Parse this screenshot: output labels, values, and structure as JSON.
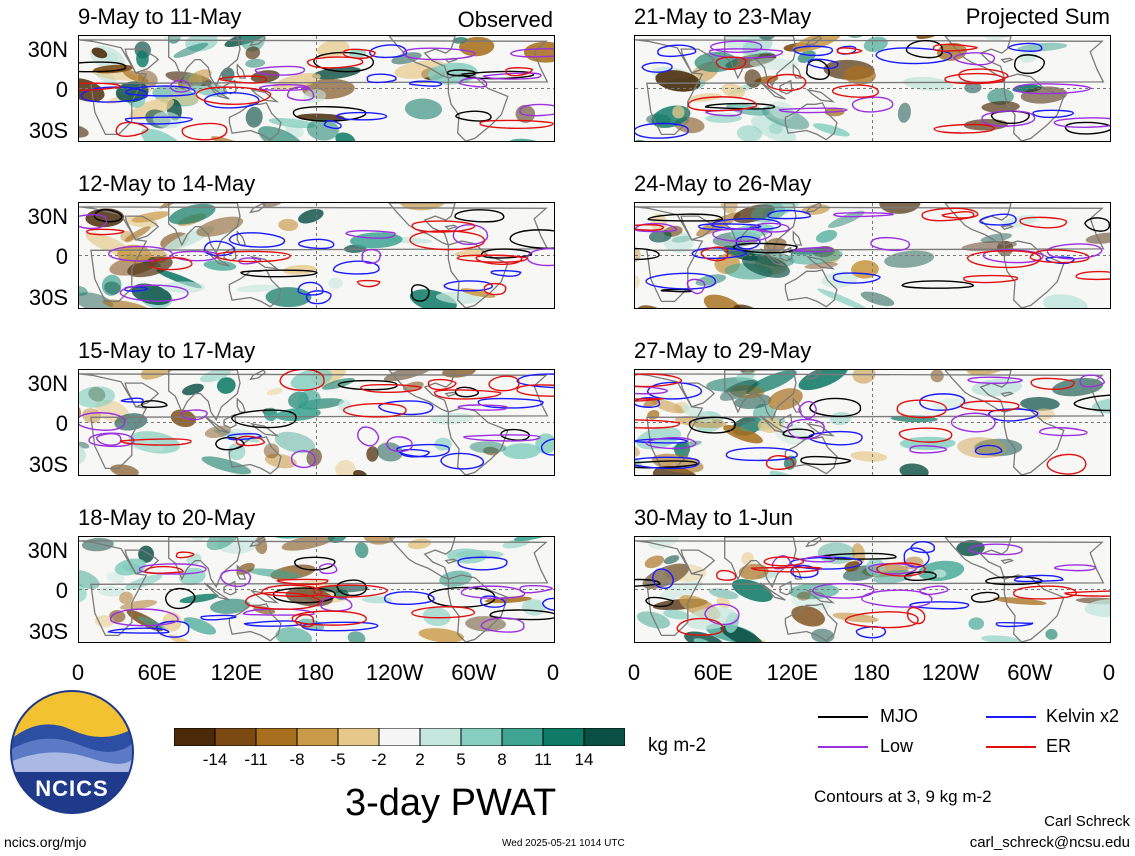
{
  "figure": {
    "title": "3-day PWAT",
    "observed_label": "Observed",
    "projected_label": "Projected Sum",
    "website": "ncics.org/mjo",
    "timestamp": "Wed 2025-05-21 1014 UTC",
    "author": "Carl Schreck",
    "email": "carl_schreck@ncsu.edu",
    "contour_note": "Contours at 3, 9 kg m-2",
    "units": "kg m-2",
    "logo_text": "NCICS"
  },
  "chart_data": {
    "type": "heatmap",
    "variable": "3-day PWAT anomaly",
    "panels": [
      {
        "label": "9-May to 11-May",
        "group": "Observed"
      },
      {
        "label": "12-May to 14-May",
        "group": "Observed"
      },
      {
        "label": "15-May to 17-May",
        "group": "Observed"
      },
      {
        "label": "18-May to 20-May",
        "group": "Observed"
      },
      {
        "label": "21-May to 23-May",
        "group": "Projected Sum"
      },
      {
        "label": "24-May to 26-May",
        "group": "Projected Sum"
      },
      {
        "label": "27-May to 29-May",
        "group": "Projected Sum"
      },
      {
        "label": "30-May to 1-Jun",
        "group": "Projected Sum"
      }
    ],
    "y_ticks": [
      "30N",
      "0",
      "30S"
    ],
    "x_ticks": [
      "0",
      "60E",
      "120E",
      "180",
      "120W",
      "60W",
      "0"
    ],
    "colorbar": {
      "labels": [
        "-14",
        "-11",
        "-8",
        "-5",
        "-2",
        "2",
        "5",
        "8",
        "11",
        "14"
      ],
      "colors": [
        "#4a2a08",
        "#7a4a12",
        "#a8701e",
        "#c99a48",
        "#e6c98a",
        "#f5f5f5",
        "#c4e6dd",
        "#86cfc0",
        "#3fa592",
        "#0f7a66",
        "#0a4f44"
      ]
    },
    "legend": [
      {
        "name": "MJO",
        "color": "#000000"
      },
      {
        "name": "Kelvin x2",
        "color": "#1a1aff"
      },
      {
        "name": "Low",
        "color": "#9b30e0"
      },
      {
        "name": "ER",
        "color": "#e01010"
      }
    ]
  }
}
